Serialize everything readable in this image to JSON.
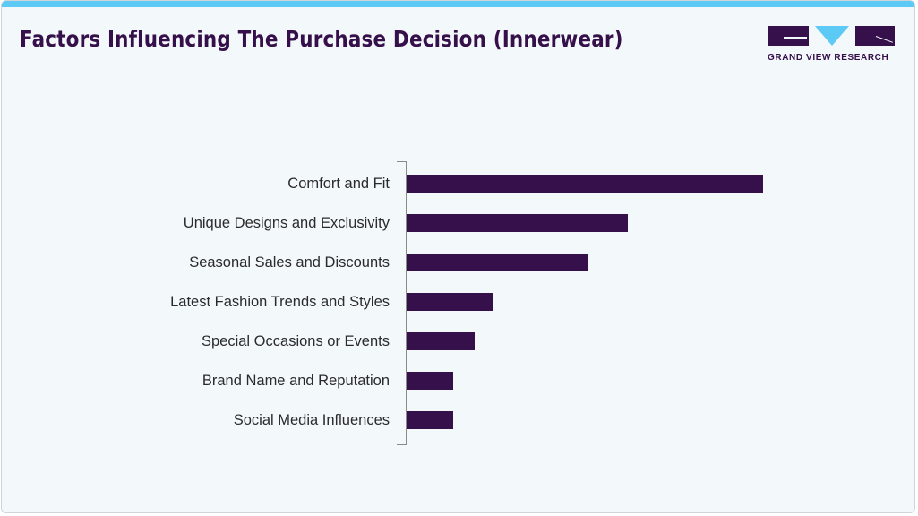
{
  "header": {
    "title": "Factors Influencing The Purchase Decision (Innerwear)",
    "logo_text": "GRAND VIEW RESEARCH",
    "logo_icon": "gvr-logo-icon"
  },
  "colors": {
    "bar": "#36104a",
    "accent": "#5ccaf5",
    "title": "#36104a",
    "background": "#f3f8fb"
  },
  "chart_data": {
    "type": "bar",
    "orientation": "horizontal",
    "title": "Factors Influencing The Purchase Decision (Innerwear)",
    "xlabel": "",
    "ylabel": "",
    "categories": [
      "Comfort and Fit",
      "Unique Designs and Exclusivity",
      "Seasonal Sales and Discounts",
      "Latest Fashion Trends and Styles",
      "Special Occasions or Events",
      "Brand Name and Reputation",
      "Social Media Influences"
    ],
    "values": [
      100,
      62,
      51,
      24,
      19,
      13,
      13
    ],
    "value_units": "relative (no axis ticks shown)",
    "grid": false,
    "legend": null
  }
}
